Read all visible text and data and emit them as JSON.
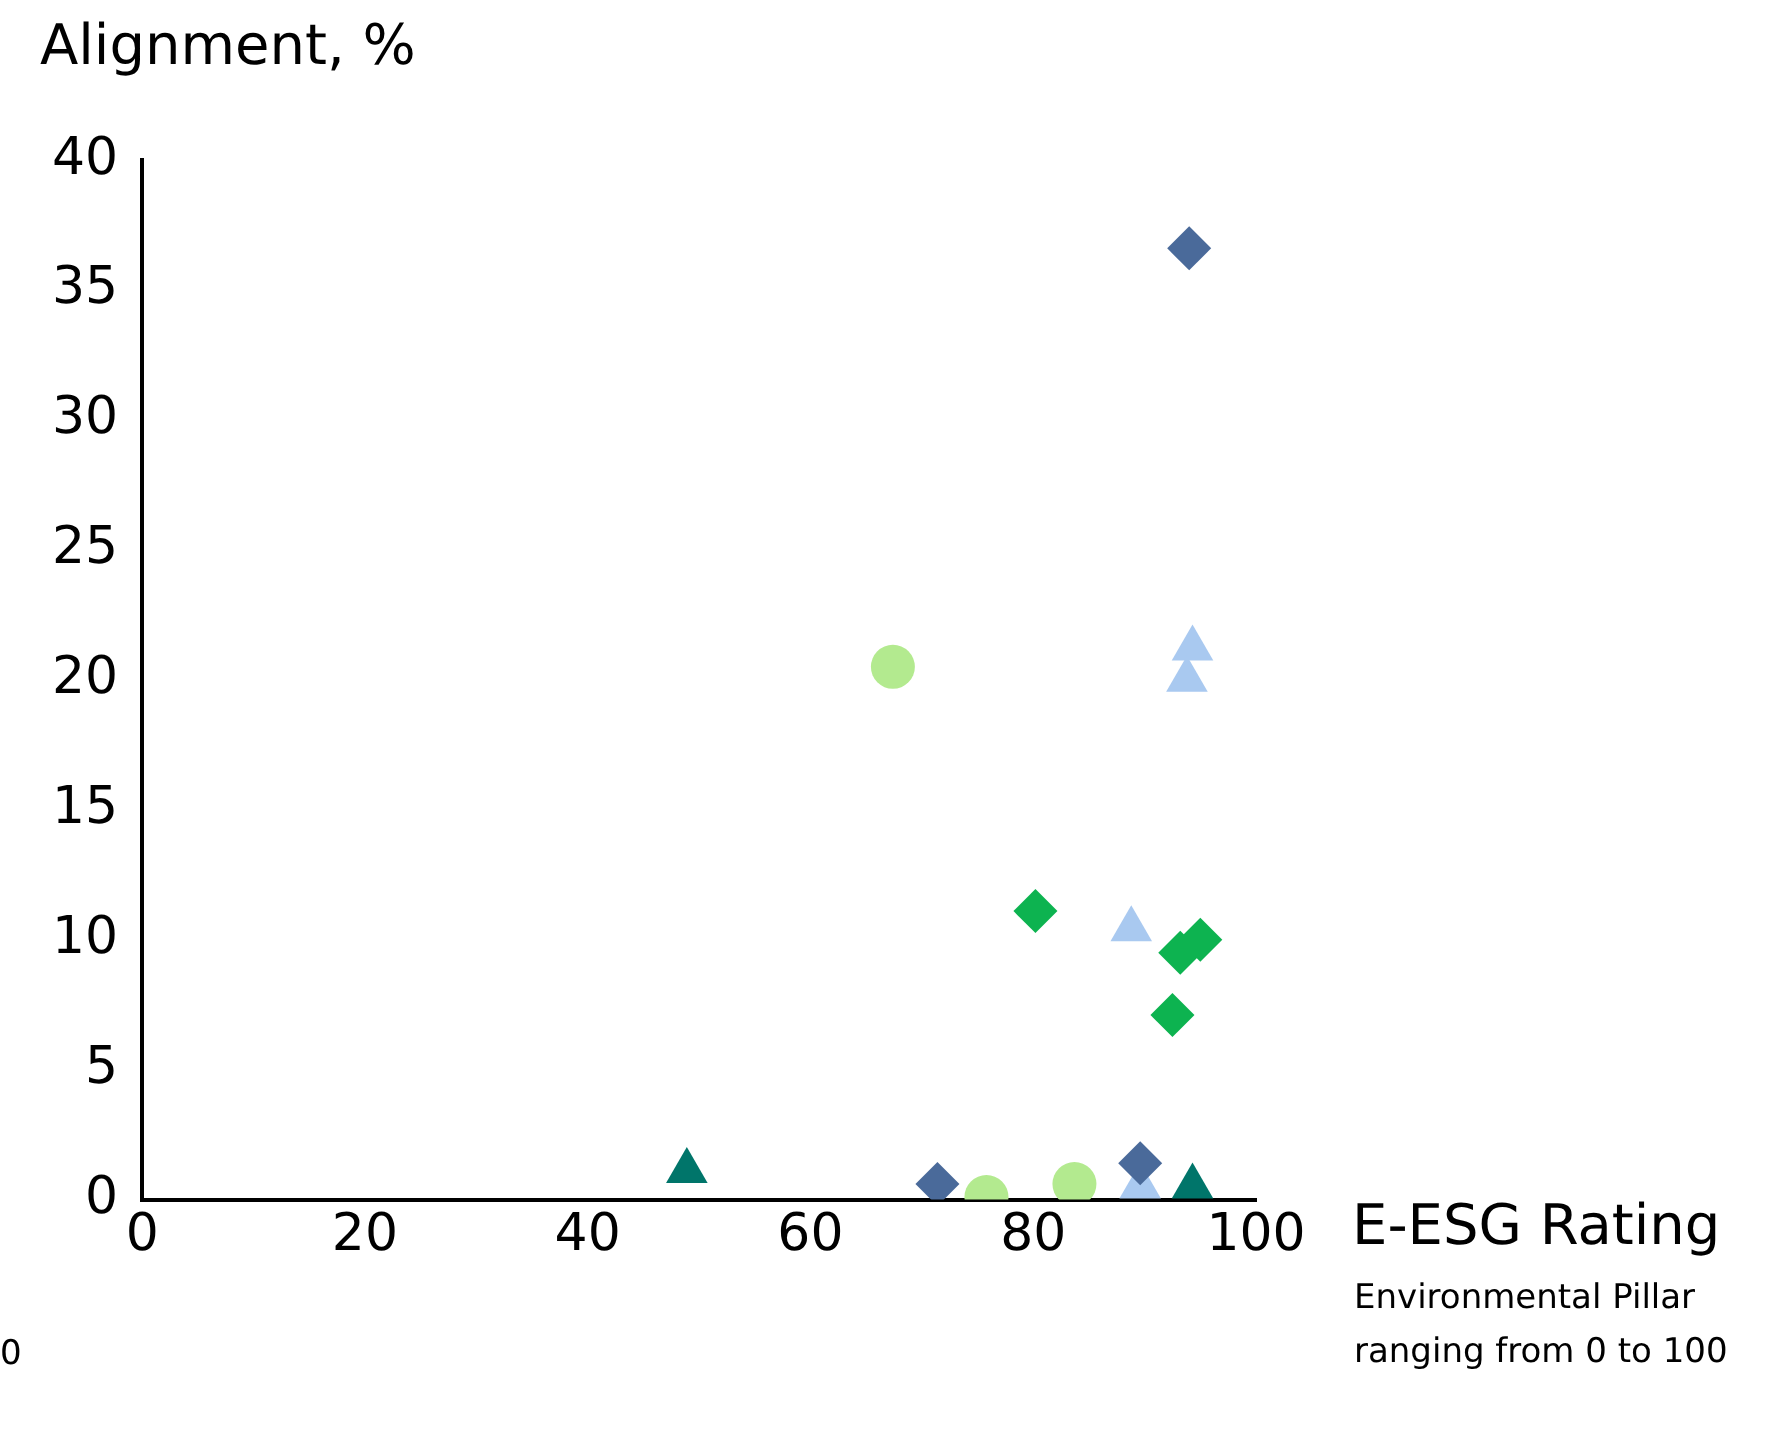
{
  "chart_data": {
    "type": "scatter",
    "xlabel": "E-ESG Rating",
    "ylabel": "Alignment, %",
    "annotations": [
      "Environmental Pillar ranging from 0 to 100",
      "0"
    ],
    "xlim": [
      0,
      100
    ],
    "xticks": [
      0,
      20,
      40,
      60,
      80,
      100
    ],
    "ylim": [
      0,
      40
    ],
    "yticks": [
      0,
      5,
      10,
      15,
      20,
      25,
      30,
      35,
      40
    ],
    "grid": false,
    "legend": false,
    "series": [
      {
        "color": "#4a6a9a",
        "marker": "diamond",
        "x": [
          94,
          71.4,
          89.6
        ],
        "values": [
          36.6,
          0.6,
          1.4
        ]
      },
      {
        "color": "#0db350",
        "marker": "diamond",
        "x": [
          80.2,
          93.2,
          95,
          92.5
        ],
        "values": [
          11.1,
          9.5,
          10,
          7.1
        ]
      },
      {
        "color": "#b3ea8f",
        "marker": "circle",
        "x": [
          67.4,
          75.8,
          83.7
        ],
        "values": [
          20.5,
          0.1,
          0.6
        ]
      },
      {
        "color": "#a9c9f0",
        "marker": "triangle",
        "x": [
          94.3,
          93.8,
          88.8,
          89.6
        ],
        "values": [
          21.2,
          20,
          10.4,
          0.5
        ]
      },
      {
        "color": "#00756a",
        "marker": "triangle",
        "x": [
          48.9,
          94.3
        ],
        "values": [
          1.1,
          0.5
        ]
      }
    ]
  }
}
